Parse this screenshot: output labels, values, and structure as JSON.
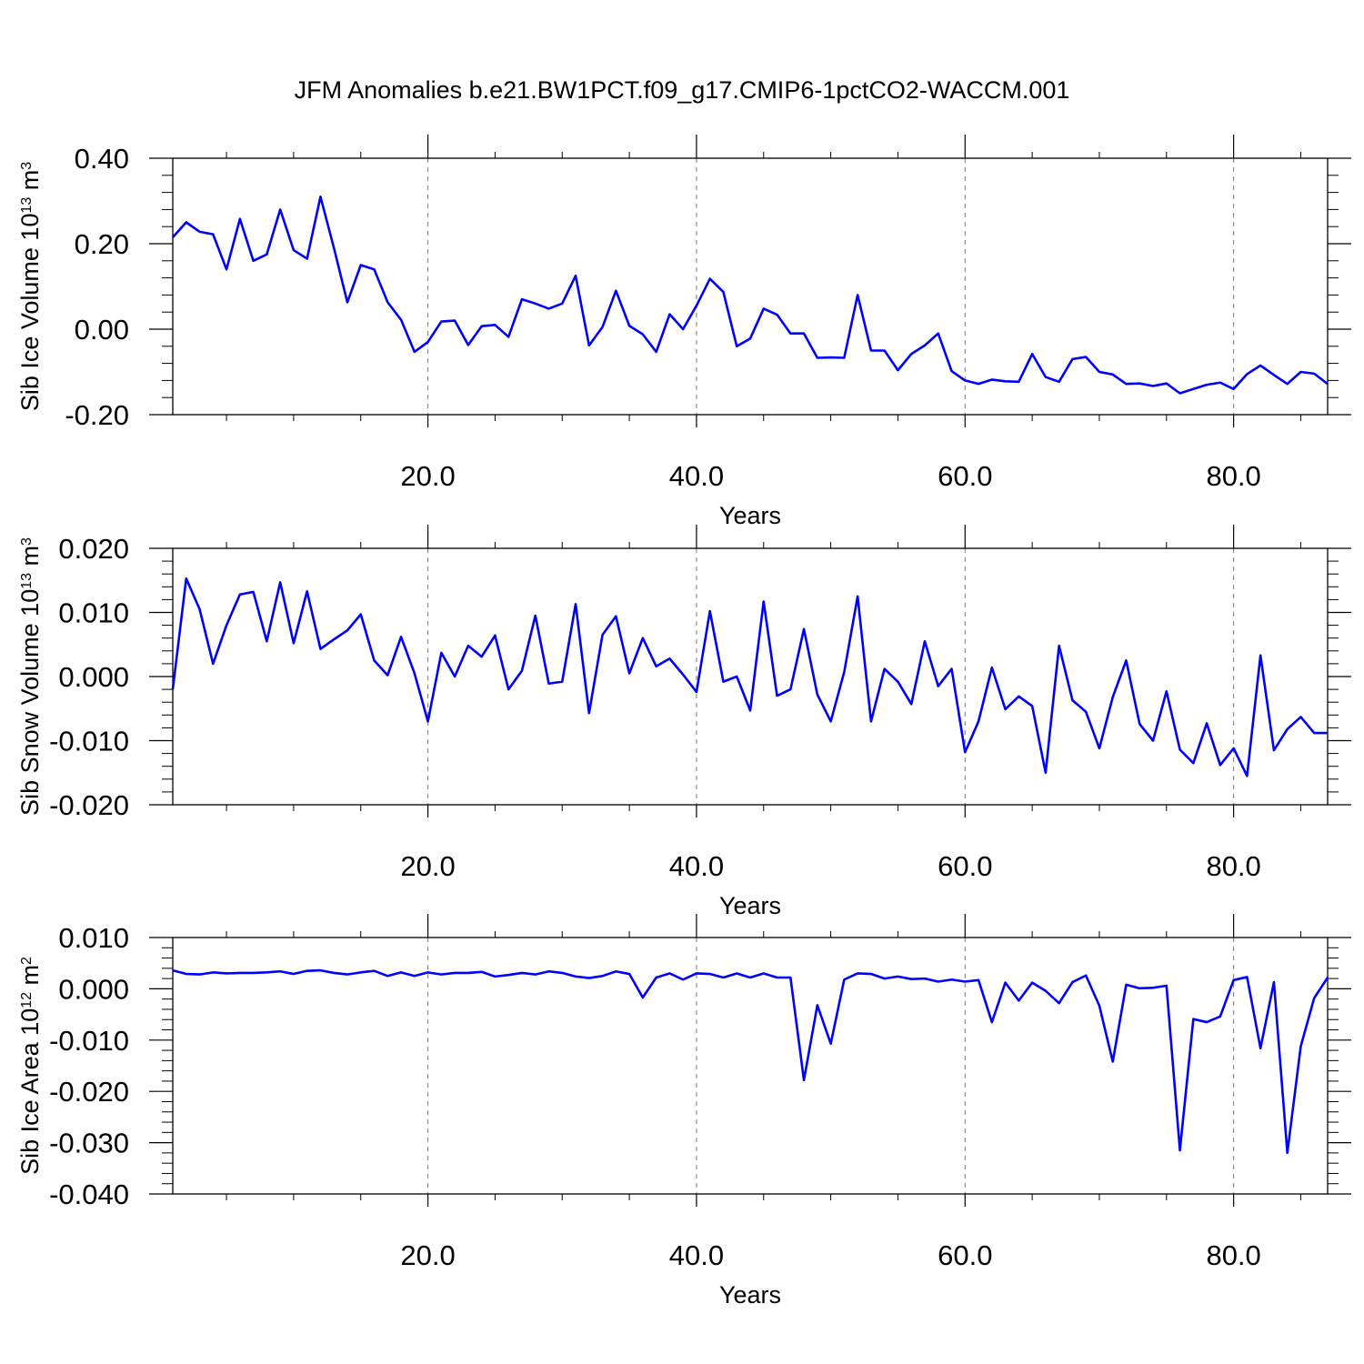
{
  "title": "JFM Anomalies b.e21.BW1PCT.f09_g17.CMIP6-1pctCO2-WACCM.001",
  "colors": {
    "line": "#0000ff",
    "axis": "#000000",
    "grid": "#000000"
  },
  "chart_data": [
    {
      "type": "line",
      "ylabel": "Sib Ice Volume 10",
      "ylabel_exp": "13",
      "ylabel_unit": " m",
      "ylabel_unit_exp": "3",
      "xlabel": "Years",
      "xlim": [
        1,
        87
      ],
      "ylim": [
        -0.2,
        0.4
      ],
      "yticks": [
        -0.2,
        0.0,
        0.2,
        0.4
      ],
      "ytick_labels": [
        "-0.20",
        "0.00",
        "0.20",
        "0.40"
      ],
      "xticks": [
        20,
        40,
        60,
        80
      ],
      "xtick_labels": [
        "20.0",
        "40.0",
        "60.0",
        "80.0"
      ],
      "x_start": 1,
      "values": [
        0.215,
        0.25,
        0.228,
        0.222,
        0.14,
        0.258,
        0.16,
        0.175,
        0.28,
        0.185,
        0.165,
        0.31,
        0.19,
        0.063,
        0.15,
        0.14,
        0.063,
        0.022,
        -0.053,
        -0.03,
        0.018,
        0.02,
        -0.037,
        0.007,
        0.01,
        -0.018,
        0.07,
        0.06,
        0.048,
        0.06,
        0.125,
        -0.038,
        0.005,
        0.09,
        0.008,
        -0.012,
        -0.053,
        0.035,
        0.0,
        0.055,
        0.118,
        0.087,
        -0.04,
        -0.022,
        0.048,
        0.034,
        -0.01,
        -0.01,
        -0.067,
        -0.066,
        -0.067,
        0.08,
        -0.05,
        -0.05,
        -0.096,
        -0.058,
        -0.038,
        -0.01,
        -0.098,
        -0.12,
        -0.128,
        -0.118,
        -0.122,
        -0.123,
        -0.058,
        -0.112,
        -0.123,
        -0.07,
        -0.065,
        -0.1,
        -0.106,
        -0.128,
        -0.127,
        -0.133,
        -0.127,
        -0.15,
        -0.14,
        -0.13,
        -0.125,
        -0.14,
        -0.105,
        -0.085,
        -0.107,
        -0.128,
        -0.1,
        -0.104,
        -0.128
      ]
    },
    {
      "type": "line",
      "ylabel": "Sib Snow Volume 10",
      "ylabel_exp": "13",
      "ylabel_unit": " m",
      "ylabel_unit_exp": "3",
      "xlabel": "Years",
      "xlim": [
        1,
        87
      ],
      "ylim": [
        -0.02,
        0.02
      ],
      "yticks": [
        -0.02,
        -0.01,
        0.0,
        0.01,
        0.02
      ],
      "ytick_labels": [
        "-0.020",
        "-0.010",
        "0.000",
        "0.010",
        "0.020"
      ],
      "xticks": [
        20,
        40,
        60,
        80
      ],
      "xtick_labels": [
        "20.0",
        "40.0",
        "60.0",
        "80.0"
      ],
      "x_start": 1,
      "values": [
        -0.002,
        0.0153,
        0.0105,
        0.002,
        0.008,
        0.0128,
        0.0132,
        0.0055,
        0.0147,
        0.0052,
        0.0133,
        0.0043,
        0.0058,
        0.0072,
        0.0097,
        0.0025,
        0.0002,
        0.0062,
        0.0005,
        -0.007,
        0.0037,
        0.0,
        0.0048,
        0.0031,
        0.0064,
        -0.002,
        0.0009,
        0.0095,
        -0.0011,
        -0.0008,
        0.0113,
        -0.0057,
        0.0065,
        0.0094,
        0.0005,
        0.006,
        0.0016,
        0.0028,
        0.0003,
        -0.0024,
        0.0102,
        -0.0008,
        0.0,
        -0.0053,
        0.0117,
        -0.003,
        -0.002,
        0.0074,
        -0.0028,
        -0.007,
        0.0007,
        0.0125,
        -0.007,
        0.0012,
        -0.0008,
        -0.0043,
        0.0055,
        -0.0015,
        0.0012,
        -0.0118,
        -0.007,
        0.0014,
        -0.0051,
        -0.0031,
        -0.0046,
        -0.015,
        0.0048,
        -0.0037,
        -0.0055,
        -0.0112,
        -0.0032,
        0.0025,
        -0.0074,
        -0.01,
        -0.0023,
        -0.0114,
        -0.0135,
        -0.0073,
        -0.0138,
        -0.0112,
        -0.0155,
        0.0033,
        -0.0115,
        -0.0082,
        -0.0063,
        -0.0088,
        -0.0088
      ]
    },
    {
      "type": "line",
      "ylabel": "Sib Ice Area 10",
      "ylabel_exp": "12",
      "ylabel_unit": " m",
      "ylabel_unit_exp": "2",
      "xlabel": "Years",
      "xlim": [
        1,
        87
      ],
      "ylim": [
        -0.04,
        0.01
      ],
      "yticks": [
        -0.04,
        -0.03,
        -0.02,
        -0.01,
        0.0,
        0.01
      ],
      "ytick_labels": [
        "-0.040",
        "-0.030",
        "-0.020",
        "-0.010",
        "0.000",
        "0.010"
      ],
      "xticks": [
        20,
        40,
        60,
        80
      ],
      "xtick_labels": [
        "20.0",
        "40.0",
        "60.0",
        "80.0"
      ],
      "x_start": 1,
      "values": [
        0.0036,
        0.0029,
        0.0028,
        0.0032,
        0.003,
        0.0031,
        0.0031,
        0.0032,
        0.0034,
        0.0029,
        0.0035,
        0.0036,
        0.0031,
        0.0028,
        0.0032,
        0.0035,
        0.0025,
        0.0032,
        0.0025,
        0.0032,
        0.0028,
        0.0031,
        0.0031,
        0.0033,
        0.0024,
        0.0027,
        0.0031,
        0.0028,
        0.0034,
        0.0031,
        0.0024,
        0.0021,
        0.0025,
        0.0034,
        0.0029,
        -0.0017,
        0.0022,
        0.003,
        0.0018,
        0.003,
        0.0029,
        0.0022,
        0.003,
        0.0022,
        0.003,
        0.0022,
        0.0022,
        -0.0178,
        -0.0032,
        -0.0107,
        0.0018,
        0.003,
        0.0029,
        0.002,
        0.0024,
        0.0019,
        0.002,
        0.0014,
        0.0018,
        0.0014,
        0.0017,
        -0.0065,
        0.0012,
        -0.0023,
        0.0012,
        -0.0004,
        -0.0028,
        0.0013,
        0.0026,
        -0.0033,
        -0.0142,
        0.0008,
        0.0001,
        0.0002,
        0.0006,
        -0.0315,
        -0.0059,
        -0.0065,
        -0.0054,
        0.0017,
        0.0023,
        -0.0116,
        0.0013,
        -0.032,
        -0.0112,
        -0.0018,
        0.0022
      ]
    }
  ]
}
